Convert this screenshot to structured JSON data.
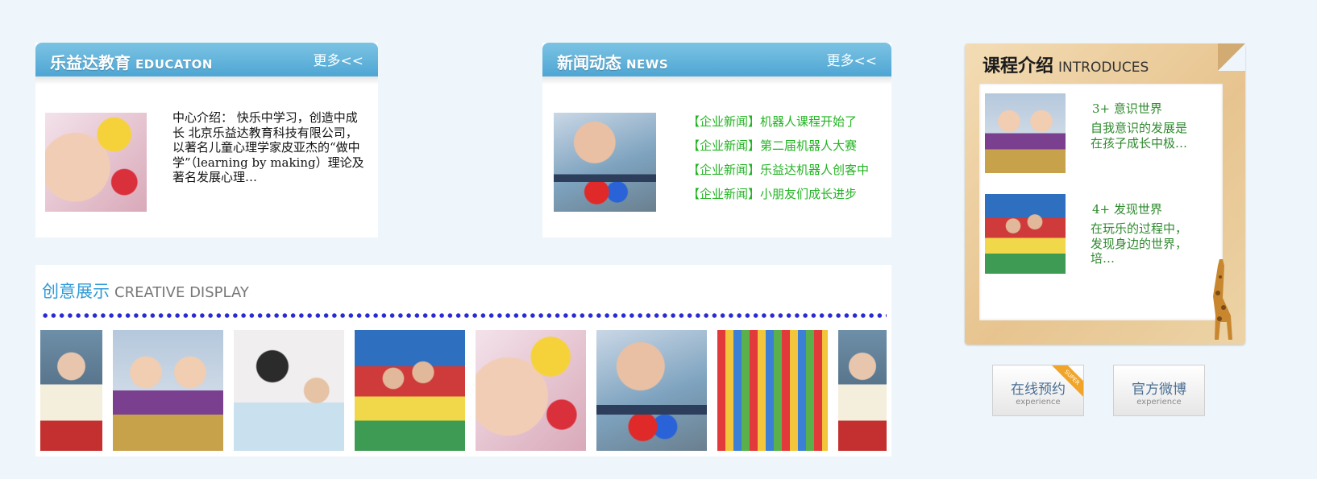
{
  "education": {
    "title": "乐益达教育",
    "title_en": "EDUCATON",
    "more": "更多<<",
    "text": "中心介绍： 快乐中学习，创造中成长 北京乐益达教育科技有限公司，以著名儿童心理学家皮亚杰的“做中学”（learning by making）理论及著名发展心理…"
  },
  "news": {
    "title": "新闻动态",
    "title_en": "NEWS",
    "more": "更多<<",
    "items": [
      "【企业新闻】机器人课程开始了",
      "【企业新闻】第二届机器人大赛",
      "【企业新闻】乐益达机器人创客中",
      "【企业新闻】小朋友们成长进步"
    ]
  },
  "creative": {
    "title": "创意展示",
    "title_en": "CREATIVE DISPLAY"
  },
  "course": {
    "title": "课程介绍",
    "title_en": "INTRODUCES",
    "items": [
      {
        "title": "3+ 意识世界",
        "desc": "自我意识的发展是在孩子成长中极…"
      },
      {
        "title": "4+ 发现世界",
        "desc": "在玩乐的过程中，发现身边的世界，培…"
      }
    ]
  },
  "buttons": {
    "booking": {
      "label": "在线预约",
      "sub": "experience",
      "ribbon": "SUPER"
    },
    "weibo": {
      "label": "官方微博",
      "sub": "experience"
    }
  },
  "colors": {
    "page_bg": "#eef6fb",
    "header_blue": "#4ea6d3",
    "news_green": "#22b422",
    "course_green": "#2f8a2f",
    "dot_blue": "#2a2ad2"
  }
}
